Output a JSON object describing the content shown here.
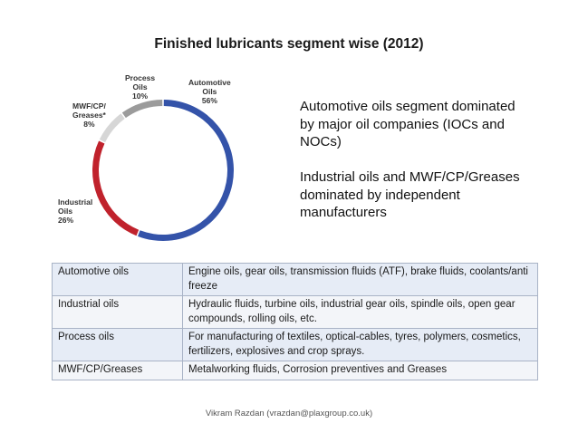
{
  "title": "Finished  lubricants segment wise (2012)",
  "chart_data": {
    "type": "pie",
    "style": "donut",
    "categories": [
      "Automotive Oils",
      "Industrial Oils",
      "MWF/CP/ Greases*",
      "Process Oils"
    ],
    "values": [
      56,
      26,
      8,
      10
    ],
    "value_labels": [
      "56%",
      "26%",
      "8%",
      "10%"
    ],
    "colors": [
      "#3453a9",
      "#c0222c",
      "#d6d6d6",
      "#9b9b9b"
    ],
    "labels": {
      "automotive": {
        "line1": "Automotive",
        "line2": "Oils",
        "pct": "56%"
      },
      "industrial": {
        "line1": "Industrial",
        "line2": "Oils",
        "pct": "26%"
      },
      "mwf": {
        "line1": "MWF/CP/",
        "line2": "Greases*",
        "pct": "8%"
      },
      "process": {
        "line1": "Process",
        "line2": "Oils",
        "pct": "10%"
      }
    }
  },
  "description": {
    "para1": "Automotive oils segment dominated by major oil companies (IOCs and NOCs)",
    "para2": "Industrial oils and MWF/CP/Greases dominated by independent manufacturers"
  },
  "table": [
    {
      "segment": "Automotive oils",
      "products": "Engine oils, gear oils, transmission fluids (ATF), brake fluids, coolants/anti freeze"
    },
    {
      "segment": "Industrial oils",
      "products": "Hydraulic fluids, turbine oils, industrial gear oils, spindle oils, open gear compounds, rolling oils, etc."
    },
    {
      "segment": "Process oils",
      "products": "For manufacturing of textiles, optical-cables, tyres, polymers, cosmetics, fertilizers, explosives and crop sprays."
    },
    {
      "segment": "MWF/CP/Greases",
      "products": "Metalworking fluids, Corrosion preventives and Greases"
    }
  ],
  "footer": "Vikram Razdan (vrazdan@plaxgroup.co.uk)"
}
